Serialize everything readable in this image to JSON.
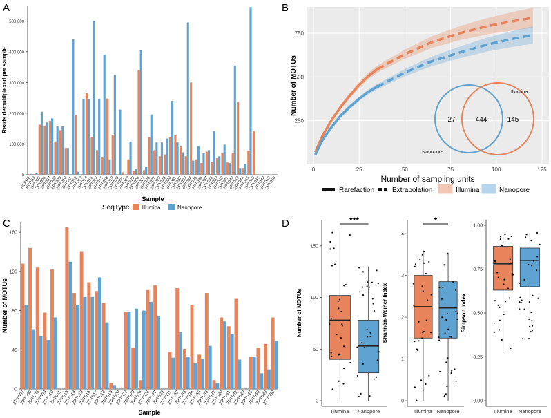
{
  "panels": {
    "a": "A",
    "b": "B",
    "c": "C",
    "d": "D"
  },
  "colors": {
    "illumina": "#E8845B",
    "nanopore": "#5FA3D3",
    "panel_bg": "#EBEBEB",
    "grid": "#FFFFFF"
  },
  "chart_data": [
    {
      "id": "A",
      "type": "bar",
      "title": "",
      "xlabel": "Sample",
      "ylabel": "Reads demultiplexed per sample",
      "ylim": [
        0,
        550000
      ],
      "yticks": [
        0,
        100000,
        200000,
        300000,
        400000,
        500000
      ],
      "ytick_labels": [
        "0",
        "100,000",
        "200,000",
        "300,000",
        "400,000",
        "500,000"
      ],
      "categories": [
        "PCRB2",
        "PCRB3",
        "ZPT005",
        "ZPT006",
        "ZPT007",
        "ZPT008",
        "ZPT009",
        "ZPT010",
        "ZPT011",
        "ZPT012",
        "ZPT013",
        "ZPT014",
        "ZPT015",
        "ZPT016",
        "ZPT017",
        "ZPT018",
        "ZPT019",
        "ZPT020",
        "ZPT021",
        "ZPT022",
        "ZPT023",
        "ZPT024",
        "ZPT025",
        "ZPT026",
        "ZPT027",
        "ZPT028",
        "ZPT029",
        "ZPT030",
        "ZPT031",
        "ZPT032",
        "ZPT033",
        "ZPT034",
        "ZPT035",
        "ZPT036",
        "ZPT037",
        "ZPT038",
        "ZPT039",
        "ZPT040",
        "ZPT041",
        "ZPT042",
        "ZPT043",
        "ZPT044",
        "ZPT045",
        "ZPT046",
        "ZPT047",
        "ZPT048",
        "ZPT049",
        "ZPT050"
      ],
      "series": [
        {
          "name": "Illumina",
          "values": [
            2000,
            2000,
            163000,
            160000,
            175000,
            108000,
            145000,
            87000,
            0,
            195000,
            0,
            265000,
            123000,
            80000,
            58000,
            248000,
            130000,
            0,
            8000,
            50000,
            12000,
            340000,
            15000,
            122000,
            80000,
            60000,
            66000,
            123000,
            128000,
            92000,
            60000,
            300000,
            50000,
            38000,
            75000,
            42000,
            55000,
            70000,
            40000,
            70000,
            237000,
            22000,
            78000,
            142000,
            0,
            0,
            0,
            0
          ]
        },
        {
          "name": "Nanopore",
          "values": [
            3000,
            5000,
            205000,
            170000,
            183000,
            157000,
            158000,
            87000,
            440000,
            10000,
            247000,
            247000,
            500000,
            246000,
            390000,
            50000,
            325000,
            212000,
            0,
            108000,
            19000,
            405000,
            25000,
            196000,
            105000,
            105000,
            118000,
            240000,
            105000,
            73000,
            495000,
            46000,
            93000,
            70000,
            80000,
            142000,
            60000,
            98000,
            38000,
            355000,
            22000,
            35000,
            545000,
            0,
            0,
            0,
            0,
            0
          ]
        }
      ],
      "legend_title": "SeqType",
      "legend": [
        "Illumina",
        "Nanopore"
      ]
    },
    {
      "id": "B",
      "type": "line",
      "title": "",
      "xlabel": "Number of sampling units",
      "ylabel": "Number of MOTUs",
      "xlim": [
        0,
        125
      ],
      "ylim": [
        0,
        900
      ],
      "xticks": [
        0,
        25,
        50,
        75,
        100,
        125
      ],
      "yticks": [
        250,
        500,
        750
      ],
      "series": [
        {
          "name": "Illumina",
          "rarefaction": {
            "x": [
              1,
              5,
              10,
              15,
              20,
              25,
              30,
              35
            ],
            "y": [
              70,
              165,
              255,
              330,
              395,
              455,
              505,
              545
            ]
          },
          "extrapolation": {
            "x": [
              35,
              50,
              65,
              80,
              95,
              110,
              120
            ],
            "y": [
              545,
              630,
              700,
              750,
              790,
              820,
              838
            ]
          },
          "ci": [
            [
              1,
              60,
              80
            ],
            [
              35,
              525,
              565
            ],
            [
              120,
              780,
              895
            ]
          ]
        },
        {
          "name": "Nanopore",
          "rarefaction": {
            "x": [
              1,
              5,
              10,
              15,
              20,
              25,
              30,
              35
            ],
            "y": [
              55,
              140,
              215,
              280,
              330,
              375,
              415,
              445
            ]
          },
          "extrapolation": {
            "x": [
              35,
              50,
              65,
              80,
              95,
              110,
              120
            ],
            "y": [
              445,
              525,
              590,
              640,
              685,
              720,
              740
            ]
          },
          "ci": [
            [
              1,
              45,
              65
            ],
            [
              35,
              430,
              460
            ],
            [
              120,
              690,
              790
            ]
          ]
        }
      ],
      "legend": [
        "Rarefaction",
        "Extrapolation",
        "Illumina",
        "Nanopore"
      ],
      "venn": {
        "left_only": "27",
        "shared": "444",
        "right_only": "145",
        "left_label": "Nanopore",
        "right_label": "Illumina"
      }
    },
    {
      "id": "C",
      "type": "bar",
      "title": "",
      "xlabel": "Sample",
      "ylabel": "Number of MOTUs",
      "ylim": [
        0,
        170
      ],
      "yticks": [
        0,
        40,
        80,
        120,
        160
      ],
      "categories": [
        "ZPT005",
        "ZPT006",
        "ZPT008",
        "ZPT009",
        "ZPT010",
        "ZPT011",
        "ZPT013",
        "ZPT014",
        "ZPT015",
        "ZPT016",
        "ZPT017",
        "ZPT018",
        "ZPT019",
        "ZPT020",
        "ZPT022",
        "ZPT023",
        "ZPT024",
        "ZPT026",
        "ZPT027",
        "ZPT029",
        "ZPT031",
        "ZPT032",
        "ZPT033",
        "ZPT034",
        "ZPT035",
        "ZPT036",
        "ZPT037",
        "ZPT040",
        "ZPT041",
        "ZPT042",
        "ZPT043",
        "ZPT045",
        "ZPT046",
        "ZPT049",
        "ZPT050"
      ],
      "series": [
        {
          "name": "Illumina",
          "values": [
            128,
            144,
            124,
            78,
            122,
            0,
            165,
            98,
            140,
            109,
            100,
            88,
            6,
            0,
            79,
            42,
            9,
            101,
            106,
            0,
            38,
            103,
            41,
            86,
            35,
            98,
            9,
            73,
            64,
            92,
            0,
            33,
            42,
            46,
            73
          ]
        },
        {
          "name": "Nanopore",
          "values": [
            86,
            61,
            54,
            50,
            73,
            0,
            130,
            86,
            94,
            94,
            114,
            68,
            4,
            0,
            79,
            82,
            80,
            89,
            74,
            0,
            32,
            58,
            33,
            26,
            31,
            44,
            6,
            69,
            56,
            30,
            0,
            33,
            16,
            20,
            49
          ]
        }
      ]
    },
    {
      "id": "D1",
      "type": "box",
      "ylabel": "Number of MOTUs",
      "ylim": [
        0,
        170
      ],
      "yticks": [
        0,
        50,
        100,
        150
      ],
      "categories": [
        "Illumina",
        "Nanopore"
      ],
      "boxes": [
        {
          "q1": 40,
          "median": 78,
          "q3": 102,
          "min": 0,
          "max": 165
        },
        {
          "q1": 27,
          "median": 53,
          "q3": 78,
          "min": 0,
          "max": 130
        }
      ],
      "significance": "***"
    },
    {
      "id": "D2",
      "type": "box",
      "ylabel": "Shannon-Weiner Index",
      "ylim": [
        0,
        4.2
      ],
      "yticks": [
        0,
        1,
        2,
        3,
        4
      ],
      "categories": [
        "Illumina",
        "Nanopore"
      ],
      "boxes": [
        {
          "q1": 1.5,
          "median": 2.25,
          "q3": 3.0,
          "min": 0,
          "max": 3.6
        },
        {
          "q1": 1.5,
          "median": 2.22,
          "q3": 2.85,
          "min": 0,
          "max": 3.55
        }
      ],
      "significance": "*"
    },
    {
      "id": "D3",
      "type": "box",
      "ylabel": "Simpson Index",
      "ylim": [
        0,
        1.0
      ],
      "yticks": [
        0,
        0.25,
        0.5,
        0.75,
        1.0
      ],
      "ytick_labels": [
        "0.00",
        "0.25",
        "0.50",
        "0.75",
        "1.00"
      ],
      "categories": [
        "Illumina",
        "Nanopore"
      ],
      "boxes": [
        {
          "q1": 0.63,
          "median": 0.78,
          "q3": 0.88,
          "min": 0.27,
          "max": 0.97
        },
        {
          "q1": 0.65,
          "median": 0.8,
          "q3": 0.87,
          "min": 0.35,
          "max": 0.96
        }
      ],
      "significance": ""
    }
  ]
}
